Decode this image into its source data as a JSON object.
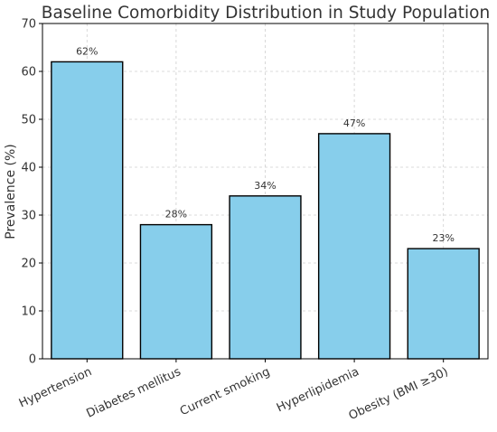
{
  "chart_data": {
    "type": "bar",
    "title": "Baseline Comorbidity Distribution in Study Population",
    "xlabel": "",
    "ylabel": "Prevalence (%)",
    "ylim": [
      0,
      70
    ],
    "yticks": [
      0,
      10,
      20,
      30,
      40,
      50,
      60,
      70
    ],
    "grid": true,
    "categories": [
      "Hypertension",
      "Diabetes mellitus",
      "Current smoking",
      "Hyperlipidemia",
      "Obesity (BMI ≥30)"
    ],
    "values": [
      62,
      28,
      34,
      47,
      23
    ],
    "data_labels": [
      "62%",
      "28%",
      "34%",
      "47%",
      "23%"
    ],
    "bar_color": "#87ceeb",
    "edge_color": "#000000"
  }
}
